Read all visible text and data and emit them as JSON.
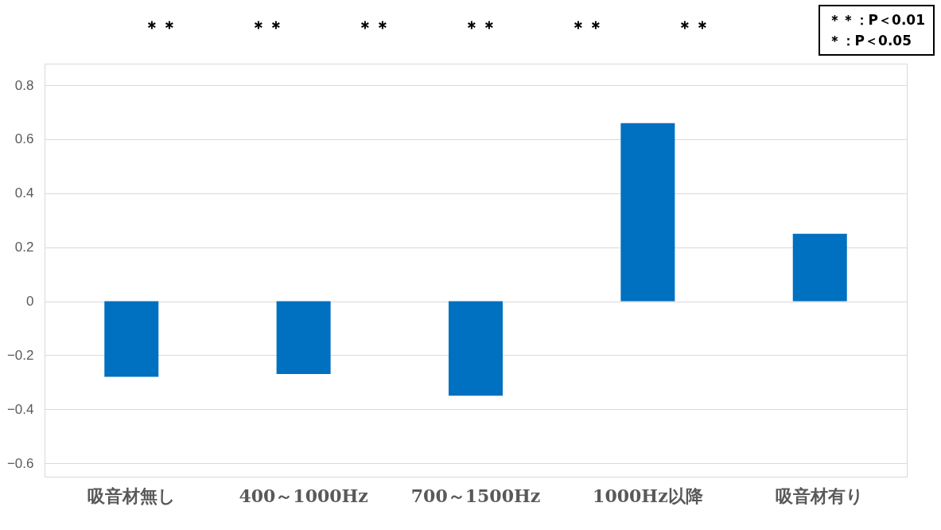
{
  "chart_data": {
    "type": "bar",
    "categories": [
      "吸音材無し",
      "400～1000Hz",
      "700～1500Hz",
      "1000Hz以降",
      "吸音材有り"
    ],
    "values": [
      -0.28,
      -0.27,
      -0.35,
      0.66,
      0.25
    ],
    "color": "#0070c0",
    "ylim": [
      -0.65,
      0.88
    ],
    "yticks": [
      -0.6,
      -0.4,
      -0.2,
      0,
      0.2,
      0.4,
      0.6,
      0.8
    ],
    "grid": "y",
    "annotations": [
      "＊＊",
      "＊＊",
      "＊＊",
      "＊＊",
      "＊＊",
      "＊＊",
      "＊＊：P＜0.01",
      "＊：P＜0.05"
    ]
  }
}
